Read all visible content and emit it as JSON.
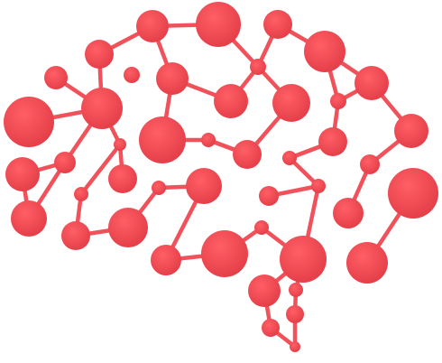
{
  "logo": {
    "icon": "brain-network-icon",
    "colors": {
      "primary": "#f1515a",
      "highlight": "#ff5f66",
      "shade": "#e33d47",
      "background": "#ffffff"
    }
  }
}
